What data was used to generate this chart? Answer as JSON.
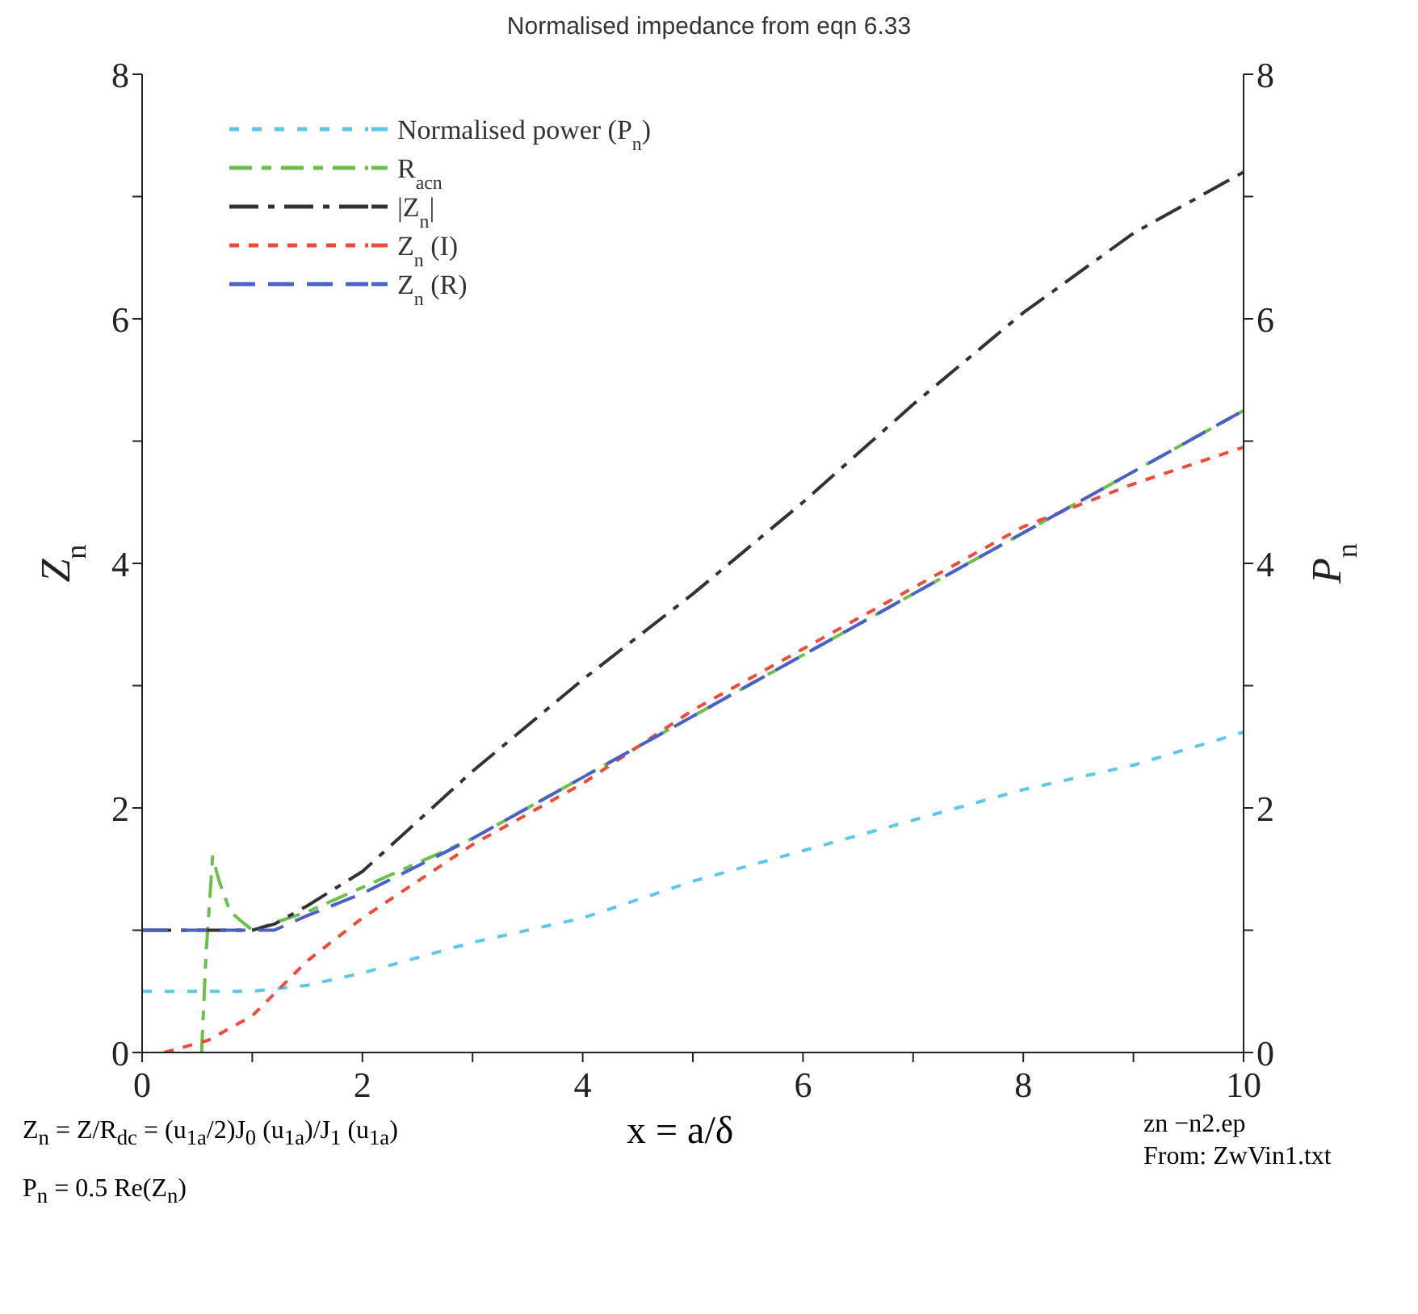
{
  "chart_data": {
    "type": "line",
    "title": "Normalised impedance from eqn 6.33",
    "xlabel": "x = a/δ",
    "ylabel": "Z$_{n}$",
    "y2label": "P$_{n}$",
    "xlim": [
      0,
      10
    ],
    "xticks": [
      0,
      {
        "value": 1,
        "label": null
      },
      2,
      {
        "value": 3,
        "label": null
      },
      4,
      {
        "value": 5,
        "label": null
      },
      6,
      {
        "value": 7,
        "label": null
      },
      8,
      {
        "value": 9,
        "label": null
      },
      10
    ],
    "ylim": [
      0,
      8
    ],
    "yticks": [
      0,
      {
        "value": 1,
        "label": null
      },
      2,
      {
        "value": 3,
        "label": null
      },
      4,
      {
        "value": 5,
        "label": null
      },
      6,
      {
        "value": 7,
        "label": null
      },
      8
    ],
    "y2lim": [
      0,
      8
    ],
    "y2ticks": [
      0,
      {
        "value": 1,
        "label": null
      },
      2,
      {
        "value": 3,
        "label": null
      },
      4,
      {
        "value": 5,
        "label": null
      },
      6,
      {
        "value": 7,
        "label": null
      },
      8
    ],
    "grid": false,
    "legend": "top left",
    "marker": "none",
    "line_style": "dashed",
    "series": [
      {
        "name": "Normalised power (P$_{n}$)",
        "color": "#5bc8e8",
        "axis": "y2",
        "x": [
          0,
          0.5,
          1,
          1.5,
          2,
          3,
          4,
          5,
          6,
          7,
          8,
          9,
          10
        ],
        "values": [
          0.5,
          0.5,
          0.5,
          0.55,
          0.65,
          0.9,
          1.1,
          1.4,
          1.65,
          1.9,
          2.15,
          2.35,
          2.62
        ]
      },
      {
        "name": "R$_{acn}$",
        "color": "#6cc04a",
        "x": [
          0.54,
          0.58,
          0.64,
          0.7,
          0.8,
          1,
          1.5,
          2,
          3,
          4,
          5,
          6,
          7,
          8,
          9,
          10
        ],
        "values": [
          0,
          0.8,
          1.6,
          1.4,
          1.15,
          1.0,
          1.15,
          1.35,
          1.75,
          2.25,
          2.75,
          3.25,
          3.75,
          4.25,
          4.75,
          5.25
        ]
      },
      {
        "name": "|Z$_{n}$|",
        "color": "#333333",
        "x": [
          0,
          0.5,
          1,
          1.2,
          1.5,
          2,
          3,
          4,
          5,
          6,
          7,
          8,
          9,
          10
        ],
        "values": [
          1,
          1,
          1,
          1.05,
          1.2,
          1.48,
          2.3,
          3.05,
          3.75,
          4.5,
          5.3,
          6.05,
          6.7,
          7.2
        ]
      },
      {
        "name": "Z$_{n}$ (I)",
        "color": "#f04a3a",
        "x": [
          0.2,
          0.6,
          1,
          1.5,
          2,
          3,
          4,
          5,
          6,
          7,
          8,
          9,
          10
        ],
        "values": [
          0,
          0.1,
          0.3,
          0.75,
          1.1,
          1.7,
          2.2,
          2.8,
          3.3,
          3.8,
          4.3,
          4.65,
          4.95
        ]
      },
      {
        "name": "Z$_{n}$ (R)",
        "color": "#4a5fc8",
        "x": [
          0,
          0.5,
          1,
          1.2,
          1.5,
          2,
          3,
          4,
          5,
          6,
          7,
          8,
          9,
          10
        ],
        "values": [
          1,
          1,
          1,
          1.0,
          1.12,
          1.3,
          1.75,
          2.25,
          2.75,
          3.25,
          3.75,
          4.25,
          4.75,
          5.25
        ]
      }
    ],
    "annotations": [
      "Z$_{n}$ = Z/R$_{dc}$ = (u$_{1a}$/2)J$_{0}$ (u$_{1a}$)/J$_{1}$ (u$_{1a}$)",
      "P$_{n}$ = 0.5 Re(Z$_{n}$)",
      "zn −n2.ep",
      "From: ZwVin1.txt"
    ]
  }
}
